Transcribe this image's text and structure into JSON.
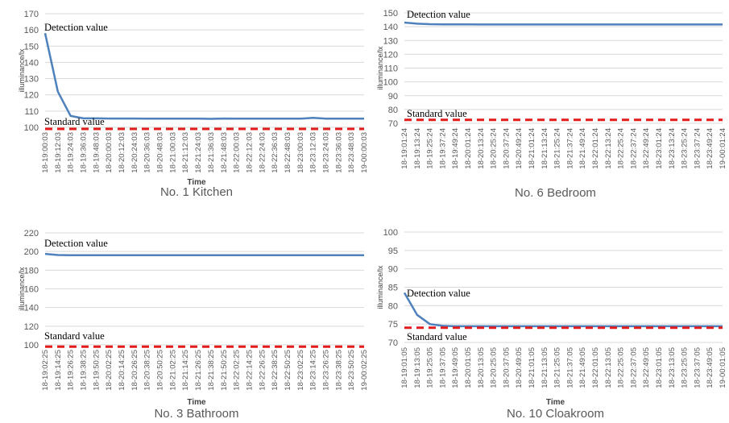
{
  "chart_data": [
    {
      "type": "line",
      "title": "No. 1 Kitchen",
      "xlabel": "Time",
      "ylabel": "illuminance/lx",
      "ylim": [
        100,
        170
      ],
      "yticks": [
        100,
        110,
        120,
        130,
        140,
        150,
        160,
        170
      ],
      "categories": [
        "18-19:00:03",
        "18-19:12:03",
        "18-19:24:03",
        "18-19:36:03",
        "18-19:48:03",
        "18-20:00:03",
        "18-20:12:03",
        "18-20:24:03",
        "18-20:36:03",
        "18-20:48:03",
        "18-21:00:03",
        "18-21:12:03",
        "18-21:24:03",
        "18-21:36:03",
        "18-21:48:03",
        "18-22:00:03",
        "18-22:12:03",
        "18-22:24:03",
        "18-22:36:03",
        "18-22:48:03",
        "18-23:00:03",
        "18-23:12:03",
        "18-23:24:03",
        "18-23:36:03",
        "18-23:48:03",
        "19-00:00:03"
      ],
      "series": [
        {
          "name": "Detection value",
          "color": "#4f81bd",
          "style": "solid",
          "values": [
            158,
            122,
            107,
            105.5,
            105.5,
            105.4,
            105.4,
            105.4,
            105.3,
            105.3,
            105.3,
            105.3,
            105.3,
            105.2,
            105.4,
            105.3,
            105.3,
            105.3,
            105.3,
            105.3,
            105.3,
            105.8,
            105.3,
            105.3,
            105.3,
            105.3
          ]
        },
        {
          "name": "Standard value",
          "color": "#e31b1b",
          "style": "dashed",
          "values": [
            99,
            99,
            99,
            99,
            99,
            99,
            99,
            99,
            99,
            99,
            99,
            99,
            99,
            99,
            99,
            99,
            99,
            99,
            99,
            99,
            99,
            99,
            99,
            99,
            99,
            99
          ]
        }
      ]
    },
    {
      "type": "line",
      "title": "No. 6 Bedroom",
      "xlabel": "",
      "ylabel": "illuminance/lx",
      "ylim": [
        70,
        150
      ],
      "yticks": [
        70,
        80,
        90,
        100,
        110,
        120,
        130,
        140,
        150
      ],
      "categories": [
        "18-19:01:24",
        "18-19:13:24",
        "18-19:25:24",
        "18-19:37:24",
        "18-19:49:24",
        "18-20:01:24",
        "18-20:13:24",
        "18-20:25:24",
        "18-20:37:24",
        "18-20:49:24",
        "18-21:01:24",
        "18-21:13:24",
        "18-21:25:24",
        "18-21:37:24",
        "18-21:49:24",
        "18-22:01:24",
        "18-22:13:24",
        "18-22:25:24",
        "18-22:37:24",
        "18-22:49:24",
        "18-23:01:24",
        "18-23:13:24",
        "18-23:25:24",
        "18-23:37:24",
        "18-23:49:24",
        "19-00:01:24"
      ],
      "series": [
        {
          "name": "Detection value",
          "color": "#4f81bd",
          "style": "solid",
          "values": [
            143,
            142.2,
            141.8,
            141.7,
            141.7,
            141.7,
            141.6,
            141.6,
            141.6,
            141.6,
            141.6,
            141.6,
            141.6,
            141.6,
            141.6,
            141.6,
            141.6,
            141.6,
            141.6,
            141.6,
            141.6,
            141.6,
            141.6,
            141.6,
            141.6,
            141.6
          ]
        },
        {
          "name": "Standard value",
          "color": "#e31b1b",
          "style": "dashed",
          "values": [
            72.5,
            72.5,
            72.5,
            72.5,
            72.5,
            72.5,
            72.5,
            72.5,
            72.5,
            72.5,
            72.5,
            72.5,
            72.5,
            72.5,
            72.5,
            72.5,
            72.5,
            72.5,
            72.5,
            72.5,
            72.5,
            72.5,
            72.5,
            72.5,
            72.5,
            72.5
          ]
        }
      ]
    },
    {
      "type": "line",
      "title": "No. 3 Bathroom",
      "xlabel": "Time",
      "ylabel": "illuminance/lx",
      "ylim": [
        100,
        220
      ],
      "yticks": [
        100,
        120,
        140,
        160,
        180,
        200,
        220
      ],
      "categories": [
        "18-19:02:25",
        "18-19:14:25",
        "18-19:26:25",
        "18-19:38:25",
        "18-19:50:25",
        "18-20:02:25",
        "18-20:14:25",
        "18-20:26:25",
        "18-20:38:25",
        "18-20:50:25",
        "18-21:02:25",
        "18-21:14:25",
        "18-21:26:25",
        "18-21:38:25",
        "18-21:50:25",
        "18-22:02:25",
        "18-22:14:25",
        "18-22:26:25",
        "18-22:38:25",
        "18-22:50:25",
        "18-23:02:25",
        "18-23:14:25",
        "18-23:26:25",
        "18-23:38:25",
        "18-23:50:25",
        "19-00:02:25"
      ],
      "series": [
        {
          "name": "Detection value",
          "color": "#4f81bd",
          "style": "solid",
          "values": [
            197.5,
            196.3,
            196,
            196,
            196,
            196,
            196,
            196,
            196,
            196,
            196,
            196,
            196,
            196,
            196,
            196,
            196,
            196,
            196,
            196,
            196,
            196,
            196,
            196,
            196,
            196
          ]
        },
        {
          "name": "Standard value",
          "color": "#e31b1b",
          "style": "dashed",
          "values": [
            98,
            98,
            98,
            98,
            98,
            98,
            98,
            98,
            98,
            98,
            98,
            98,
            98,
            98,
            98,
            98,
            98,
            98,
            98,
            98,
            98,
            98,
            98,
            98,
            98,
            98
          ]
        }
      ]
    },
    {
      "type": "line",
      "title": "No. 10 Cloakroom",
      "xlabel": "Time",
      "ylabel": "illuminance/lx",
      "ylim": [
        70,
        100
      ],
      "yticks": [
        70,
        75,
        80,
        85,
        90,
        95,
        100
      ],
      "categories": [
        "18-19:01:05",
        "18-19:13:05",
        "18-19:25:05",
        "18-19:37:05",
        "18-19:49:05",
        "18-20:01:05",
        "18-20:13:05",
        "18-20:25:05",
        "18-20:37:05",
        "18-20:49:05",
        "18-21:01:05",
        "18-21:13:05",
        "18-21:25:05",
        "18-21:37:05",
        "18-21:49:05",
        "18-22:01:05",
        "18-22:13:05",
        "18-22:25:05",
        "18-22:37:05",
        "18-22:49:05",
        "18-23:01:05",
        "18-23:13:05",
        "18-23:25:05",
        "18-23:37:05",
        "18-23:49:05",
        "19-00:01:05"
      ],
      "series": [
        {
          "name": "Detection value",
          "color": "#4f81bd",
          "style": "solid",
          "values": [
            83.5,
            77.5,
            75,
            74.5,
            74.4,
            74.4,
            74.4,
            74.4,
            74.4,
            74.4,
            74.4,
            74.4,
            74.4,
            74.4,
            74.4,
            74.4,
            74.4,
            74.4,
            74.4,
            74.4,
            74.4,
            74.4,
            74.4,
            74.4,
            74.4,
            74.4
          ]
        },
        {
          "name": "Standard value",
          "color": "#e31b1b",
          "style": "dashed",
          "values": [
            74,
            74,
            74,
            74,
            74,
            74,
            74,
            74,
            74,
            74,
            74,
            74,
            74,
            74,
            74,
            74,
            74,
            74,
            74,
            74,
            74,
            74,
            74,
            74,
            74,
            74
          ]
        }
      ]
    }
  ]
}
